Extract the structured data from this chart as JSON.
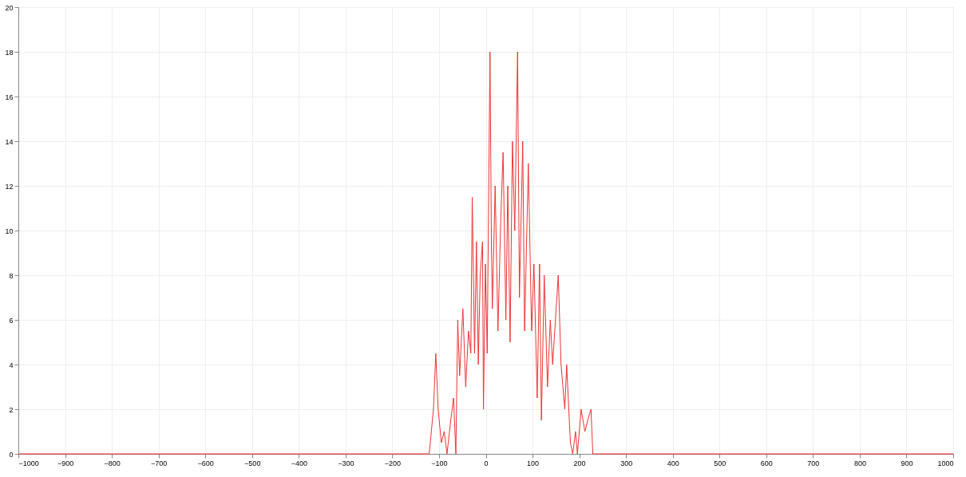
{
  "chart_data": {
    "type": "line",
    "marker": "none",
    "line_style": "solid",
    "grid": true,
    "xlim": [
      -1000,
      1000
    ],
    "xticks": [
      -1000,
      -900,
      -800,
      -700,
      -600,
      -500,
      -400,
      -300,
      -200,
      -100,
      0,
      100,
      200,
      300,
      400,
      500,
      600,
      700,
      800,
      900,
      1000
    ],
    "ylim": [
      0,
      20
    ],
    "yticks": [
      0,
      2,
      4,
      6,
      8,
      10,
      12,
      14,
      16,
      18,
      20
    ],
    "series": [
      {
        "color": "#ee3333",
        "x": [
          -1000,
          -121,
          -112,
          -107,
          -102,
          -95,
          -89,
          -83,
          -75,
          -69,
          -64,
          -60,
          -56,
          -49,
          -43,
          -37,
          -32,
          -29,
          -24,
          -20,
          -16,
          -12,
          -7,
          -5,
          -1,
          3,
          9,
          12,
          14,
          20,
          26,
          32,
          37,
          43,
          47,
          52,
          57,
          62,
          68,
          72,
          79,
          83,
          91,
          98,
          103,
          110,
          115,
          119,
          125,
          132,
          138,
          143,
          149,
          155,
          161,
          169,
          173,
          181,
          186,
          192,
          196,
          204,
          212,
          218,
          225,
          229,
          1000
        ],
        "values": [
          0,
          0,
          2,
          4.5,
          2,
          0.5,
          1,
          0,
          1.5,
          2.5,
          0,
          6,
          3.5,
          6.5,
          3,
          5.5,
          4.5,
          11.5,
          4.5,
          9.5,
          4,
          8,
          9.5,
          2,
          8.5,
          4.5,
          18,
          9.5,
          6.5,
          12,
          5.5,
          10.5,
          13.5,
          6,
          12,
          5,
          14,
          10,
          18,
          7,
          14,
          5.5,
          13,
          5.5,
          8.5,
          2.5,
          8.5,
          1.5,
          8,
          3,
          6,
          4,
          6,
          8,
          4,
          2,
          4,
          0.5,
          0,
          1,
          0,
          2,
          1,
          1.5,
          2,
          0,
          0
        ]
      }
    ]
  }
}
